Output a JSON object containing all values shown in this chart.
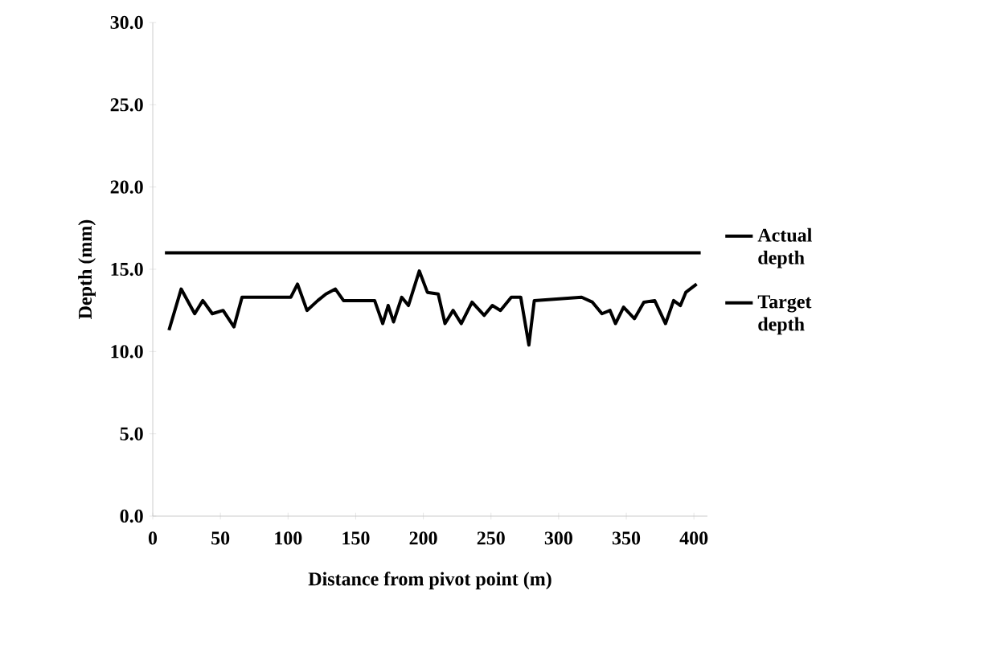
{
  "chart_data": {
    "type": "line",
    "xlabel": "Distance from pivot point (m)",
    "ylabel": "Depth (mm)",
    "xlim": [
      0,
      410
    ],
    "ylim": [
      0,
      30
    ],
    "xticks": [
      0,
      50,
      100,
      150,
      200,
      250,
      300,
      350,
      400
    ],
    "yticks": [
      {
        "value": 0,
        "label": "0.0"
      },
      {
        "value": 5,
        "label": "5.0"
      },
      {
        "value": 10,
        "label": "10.0"
      },
      {
        "value": 15,
        "label": "15.0"
      },
      {
        "value": 20,
        "label": "20.0"
      },
      {
        "value": 25,
        "label": "25.0"
      },
      {
        "value": 30,
        "label": "30.0"
      }
    ],
    "grid": false,
    "legend": "right",
    "line_style": "solid",
    "marker": "none",
    "series": [
      {
        "name": "Actual depth",
        "color": "#000000",
        "x": [
          12,
          21,
          31,
          37,
          44,
          52,
          60,
          66,
          102,
          107,
          114,
          122,
          128,
          135,
          141,
          164,
          170,
          174,
          178,
          184,
          189,
          197,
          203,
          211,
          216,
          222,
          228,
          236,
          245,
          251,
          257,
          265,
          272,
          278,
          282,
          317,
          325,
          332,
          338,
          342,
          348,
          356,
          363,
          371,
          379,
          385,
          390,
          394,
          402
        ],
        "values": [
          11.3,
          13.8,
          12.3,
          13.1,
          12.3,
          12.5,
          11.5,
          13.3,
          13.3,
          14.1,
          12.5,
          13.1,
          13.5,
          13.8,
          13.1,
          13.1,
          11.7,
          12.8,
          11.8,
          13.3,
          12.8,
          14.9,
          13.6,
          13.5,
          11.7,
          12.5,
          11.7,
          13.0,
          12.2,
          12.8,
          12.5,
          13.3,
          13.3,
          10.4,
          13.1,
          13.3,
          13.0,
          12.3,
          12.5,
          11.7,
          12.7,
          12.0,
          13.0,
          13.1,
          11.7,
          13.1,
          12.8,
          13.6,
          14.1
        ]
      },
      {
        "name": "Target depth",
        "color": "#000000",
        "x": [
          9,
          405
        ],
        "values": [
          16,
          16
        ]
      }
    ]
  }
}
